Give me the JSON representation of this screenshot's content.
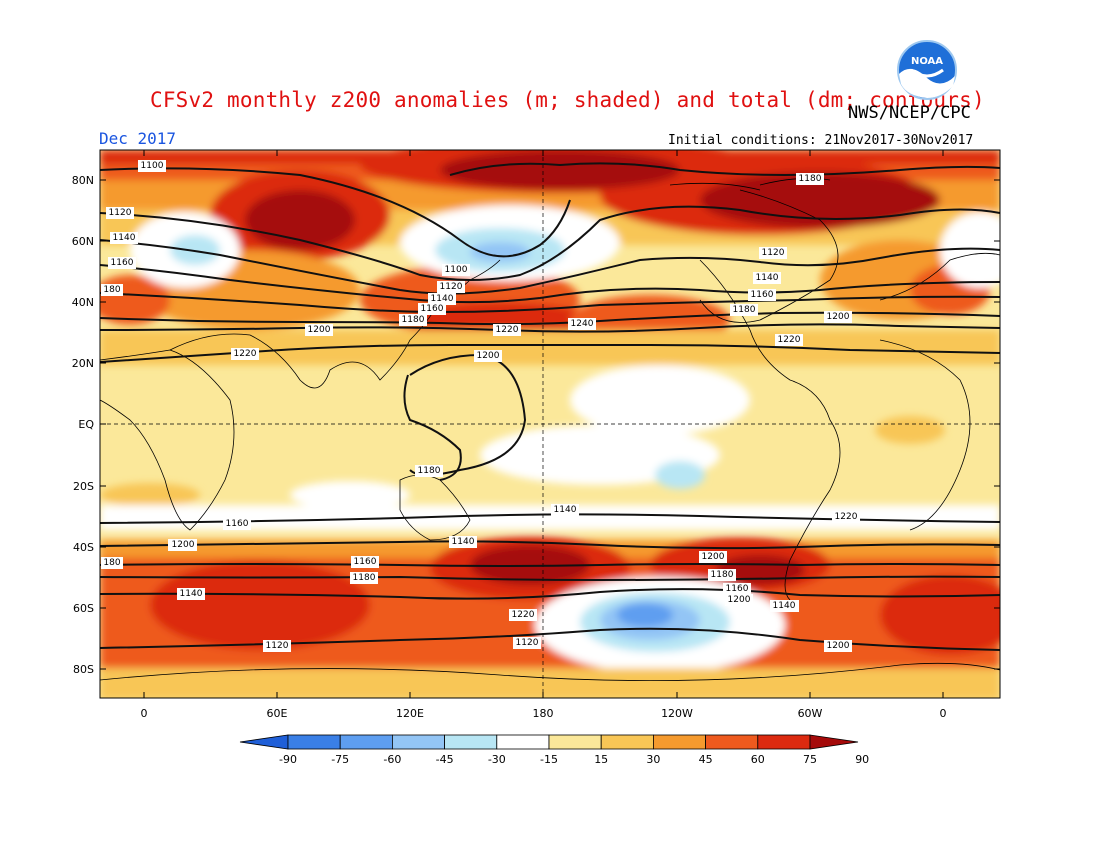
{
  "title": "CFSv2 monthly z200 anomalies (m; shaded) and total (dm; contours)",
  "agency": "NWS/NCEP/CPC",
  "logo_text": "NOAA",
  "month": "Dec 2017",
  "initial_conditions": "Initial conditions: 21Nov2017-30Nov2017",
  "axes": {
    "lat_labels": [
      "80N",
      "60N",
      "40N",
      "20N",
      "EQ",
      "20S",
      "40S",
      "60S",
      "80S"
    ],
    "lon_labels": [
      "0",
      "60E",
      "120E",
      "180",
      "120W",
      "60W",
      "0"
    ]
  },
  "colorbar": {
    "labels": [
      "-90",
      "-75",
      "-60",
      "-45",
      "-30",
      "-15",
      "15",
      "30",
      "45",
      "60",
      "75",
      "90"
    ],
    "colors": [
      "#1f5fd8",
      "#3a7fe6",
      "#5e9ef0",
      "#93c5f5",
      "#b8e6f4",
      "#ffffff",
      "#fbe89a",
      "#f8c656",
      "#f59a2e",
      "#ee5a1e",
      "#dc2a10",
      "#a50a0a"
    ]
  },
  "contour_labels": [
    "1100",
    "1180",
    "1120",
    "1140",
    "1160",
    "1100",
    "1120",
    "1140",
    "1160",
    "1180",
    "1200",
    "1220",
    "1240",
    "1220",
    "1200",
    "1180",
    "1160",
    "1140",
    "1120",
    "1140",
    "1160",
    "1180",
    "1200",
    "1220",
    "1240",
    "1220",
    "1200",
    "1220",
    "1200",
    "180",
    "1220",
    "1200",
    "1180",
    "1160",
    "1200",
    "1180",
    "1160",
    "1140",
    "1140",
    "1120",
    "1140",
    "1120",
    "1120",
    "180",
    "1200",
    "1220"
  ]
}
